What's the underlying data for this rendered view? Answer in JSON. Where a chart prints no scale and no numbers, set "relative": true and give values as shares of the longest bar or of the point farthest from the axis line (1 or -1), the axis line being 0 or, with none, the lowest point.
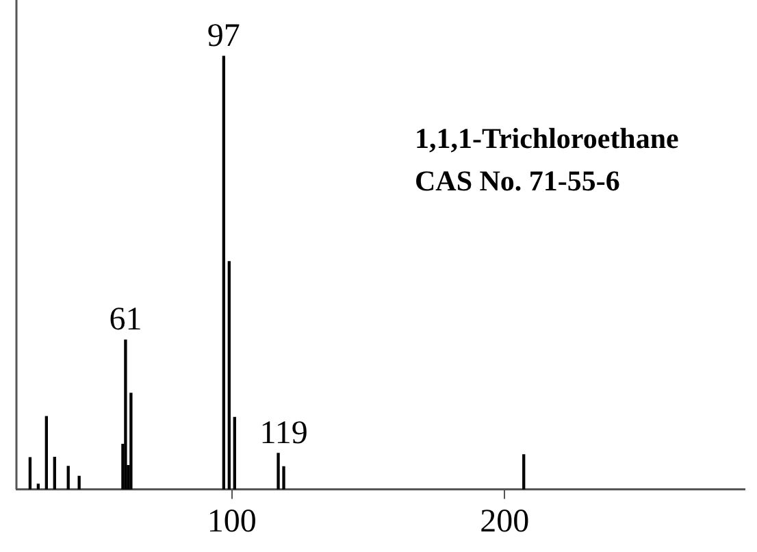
{
  "chart_data": {
    "type": "bar",
    "relative": true,
    "color": "#000000",
    "grid": false,
    "legend": false,
    "x": [
      26,
      29,
      32,
      35,
      40,
      44,
      60,
      61,
      62,
      63,
      97,
      99,
      101,
      117,
      119,
      207
    ],
    "values": [
      0.073,
      0.012,
      0.168,
      0.074,
      0.053,
      0.03,
      0.104,
      0.345,
      0.055,
      0.222,
      1,
      0.526,
      0.166,
      0.083,
      0.052,
      0.08
    ],
    "xlim": [
      21,
      288
    ],
    "xticks": [
      100,
      200
    ],
    "annotations": [
      {
        "text": "61",
        "x": 61,
        "y": 0.345
      },
      {
        "text": "97",
        "x": 97,
        "y": 1
      },
      {
        "text": "119",
        "x": 119,
        "y": 0.083
      },
      "1,1,1-Trichloroethane",
      "CAS No. 71-55-6"
    ]
  }
}
